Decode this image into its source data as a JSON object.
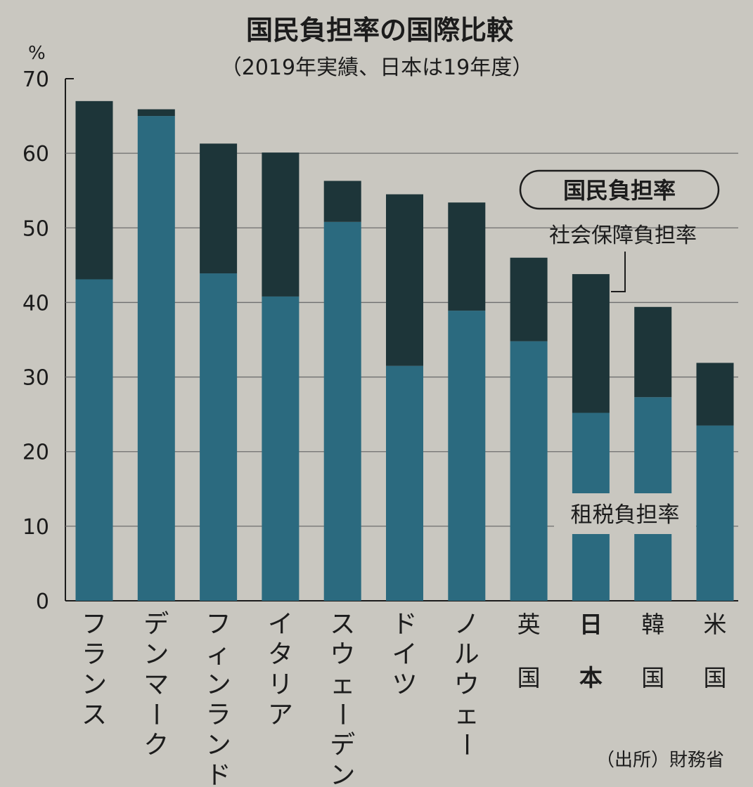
{
  "chart_data": {
    "type": "bar",
    "stacked": true,
    "title": "国民負担率の国際比較",
    "subtitle": "（2019年実績、日本は19年度）",
    "ylabel": "%",
    "ylim": [
      0,
      70
    ],
    "yticks": [
      "0",
      "10",
      "20",
      "30",
      "40",
      "50",
      "60",
      "70"
    ],
    "grid": true,
    "categories": [
      "フランス",
      "デンマーク",
      "フィンランド",
      "イタリア",
      "スウェーデン",
      "ドイツ",
      "ノルウェー",
      "英国",
      "日本",
      "韓国",
      "米国"
    ],
    "series": [
      {
        "name": "租税負担率",
        "values": [
          43.1,
          65.0,
          43.9,
          40.8,
          50.8,
          31.5,
          38.9,
          34.8,
          25.2,
          27.3,
          23.5
        ]
      },
      {
        "name": "社会保障負担率",
        "values": [
          23.9,
          0.9,
          17.4,
          19.3,
          5.5,
          23.0,
          14.5,
          11.2,
          18.6,
          12.1,
          8.4
        ]
      }
    ],
    "totals_label": "国民負担率",
    "source": "（出所）財務省",
    "colors": {
      "tax": "#2b6a7f",
      "social": "#1d3539",
      "background": "#c9c7c0",
      "grid": "#6e6e6e"
    }
  }
}
